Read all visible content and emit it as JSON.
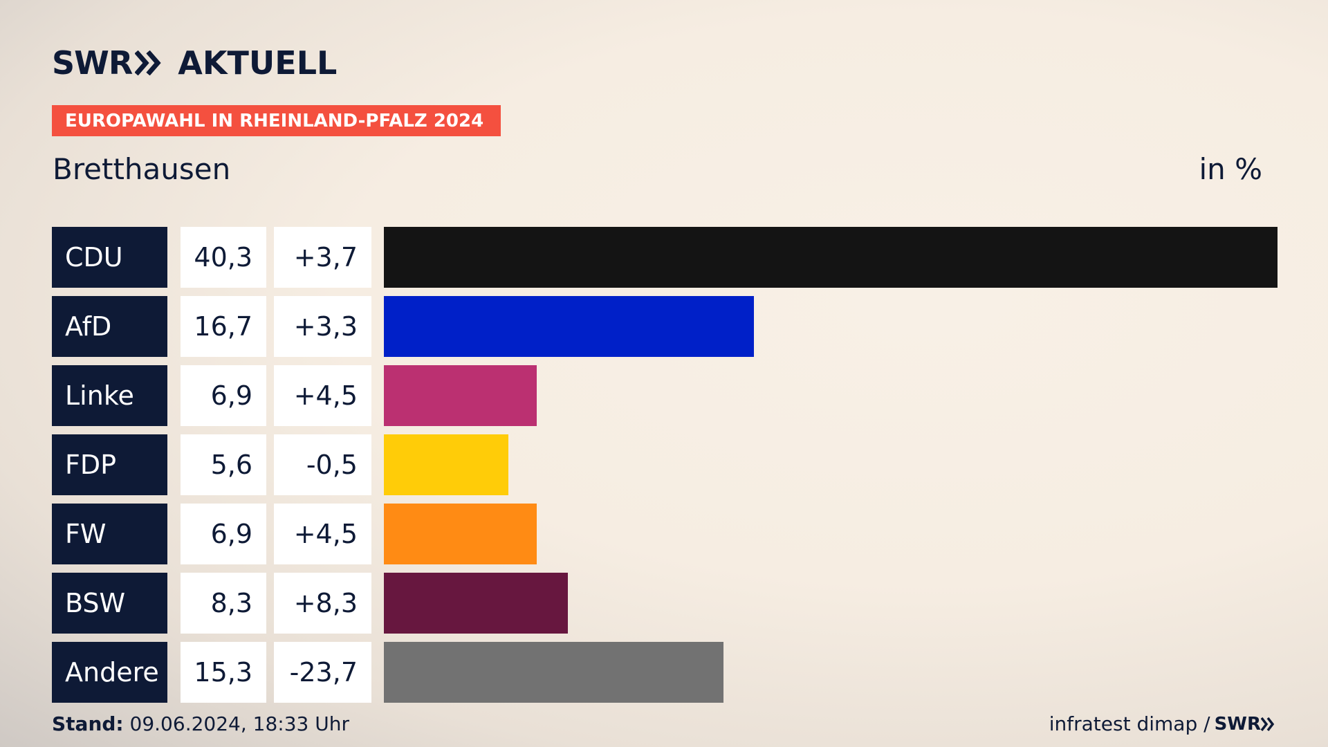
{
  "brand": {
    "logo_swr": "SWR",
    "logo_name": "AKTUELL"
  },
  "election_label": "EUROPAWAHL IN RHEINLAND-PFALZ 2024",
  "place": "Bretthausen",
  "unit": "in %",
  "footer": {
    "stand_label": "Stand:",
    "stand_value": "09.06.2024, 18:33 Uhr",
    "source": "infratest dimap /",
    "source_logo": "SWR"
  },
  "chart_data": {
    "type": "bar",
    "orientation": "horizontal",
    "value_unit": "%",
    "categories": [
      "CDU",
      "AfD",
      "Linke",
      "FDP",
      "FW",
      "BSW",
      "Andere"
    ],
    "values": [
      40.3,
      16.7,
      6.9,
      5.6,
      6.9,
      8.3,
      15.3
    ],
    "value_labels": [
      "40,3",
      "16,7",
      "6,9",
      "5,6",
      "6,9",
      "8,3",
      "15,3"
    ],
    "changes": [
      3.7,
      3.3,
      4.5,
      -0.5,
      4.5,
      8.3,
      -23.7
    ],
    "change_labels": [
      "+3,7",
      "+3,3",
      "+4,5",
      "-0,5",
      "+4,5",
      "+8,3",
      "-23,7"
    ],
    "colors": [
      "#141414",
      "#0020c8",
      "#bb3071",
      "#ffcc08",
      "#ff8b14",
      "#67173f",
      "#727272"
    ],
    "xlim": [
      0,
      40.3
    ],
    "grid": false,
    "legend": "none"
  }
}
